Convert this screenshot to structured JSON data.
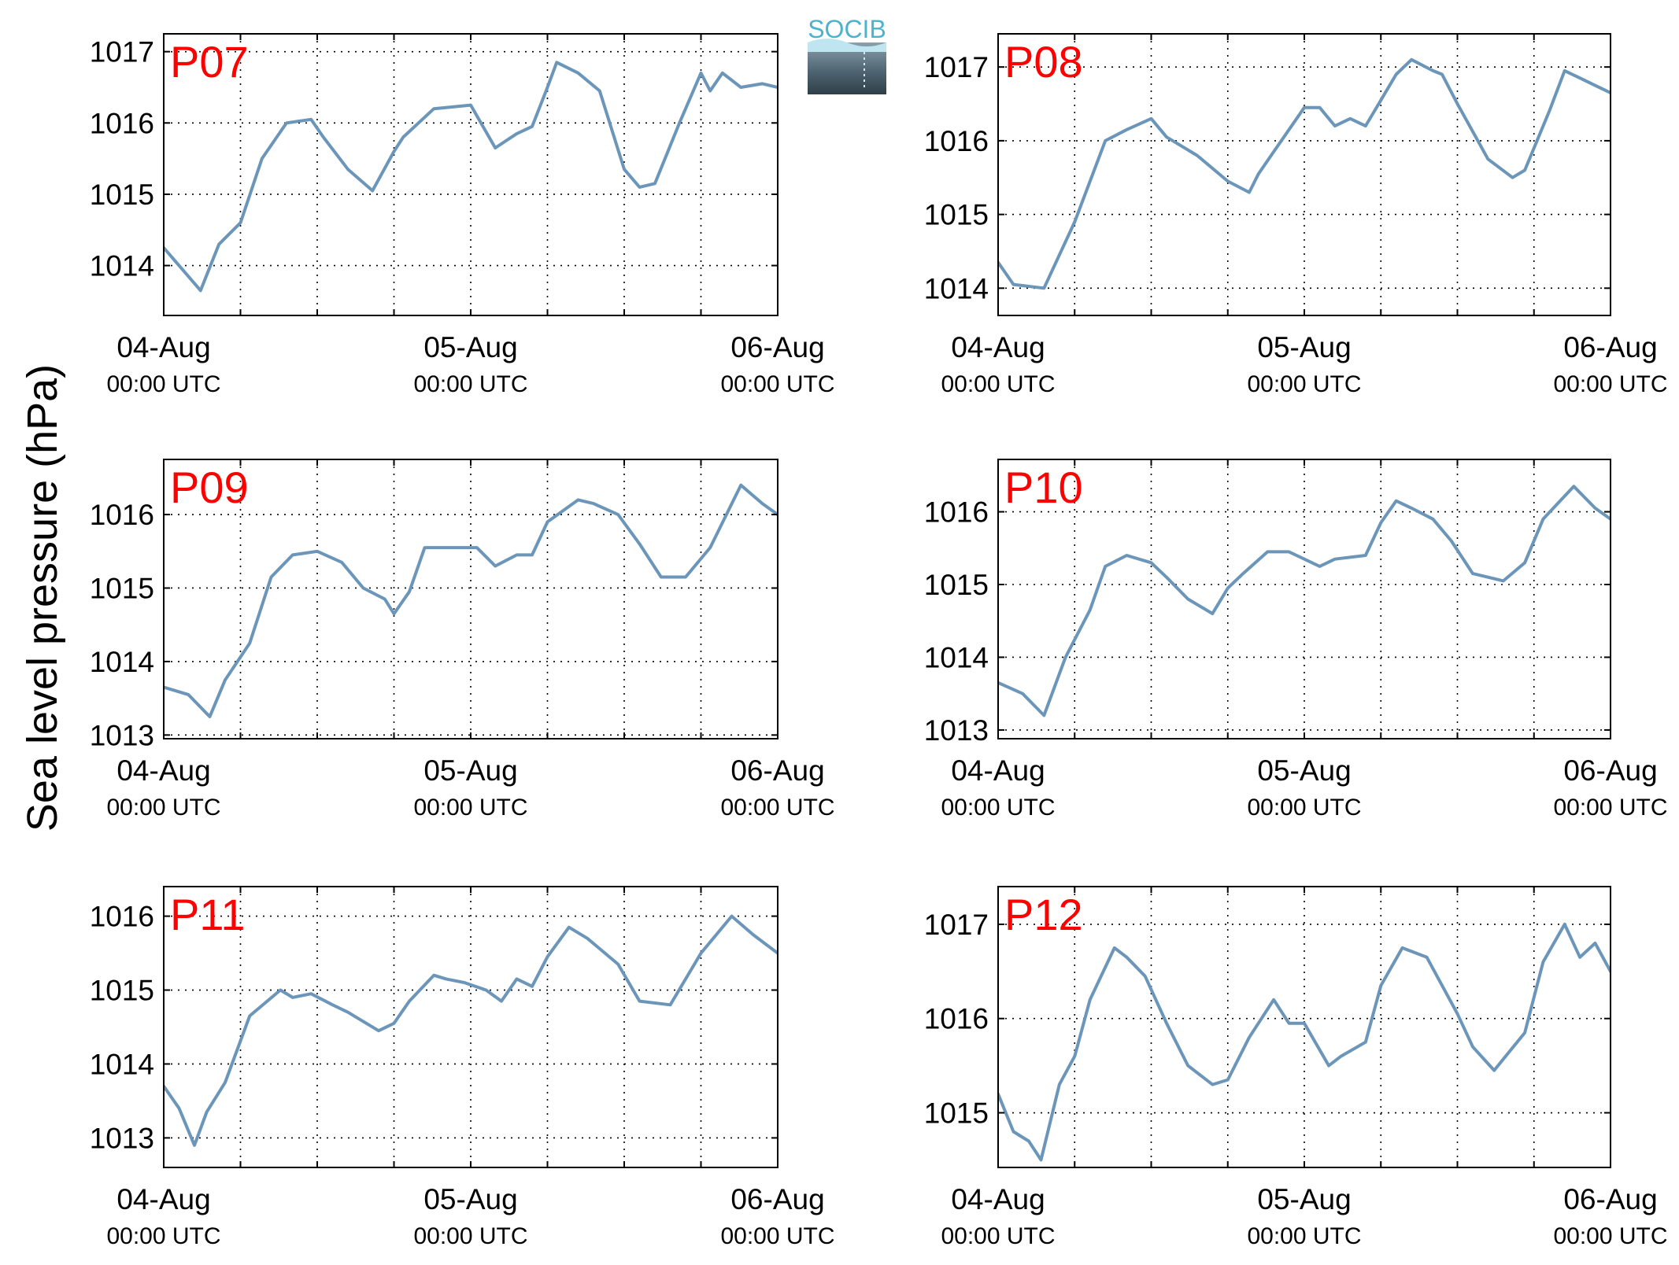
{
  "figure": {
    "ylabel": "Sea level pressure (hPa)",
    "logo_text": "SOCIB",
    "line_color": "#6b96b9",
    "panel_label_color": "#ff0000"
  },
  "chart_data": [
    {
      "type": "line",
      "panel_label": "P07",
      "x_tick_dates": [
        "04-Aug",
        "05-Aug",
        "06-Aug"
      ],
      "x_tick_times": [
        "00:00 UTC",
        "00:00 UTC",
        "00:00 UTC"
      ],
      "ylim": [
        1013.3,
        1017.25
      ],
      "yticks": [
        1014,
        1015,
        1016,
        1017
      ],
      "grid": true,
      "series": [
        {
          "x": [
            0,
            0.08,
            0.12,
            0.18,
            0.25,
            0.32,
            0.4,
            0.48,
            0.52,
            0.6,
            0.68,
            0.75,
            0.78,
            0.88,
            1.0,
            1.08,
            1.15,
            1.2,
            1.25,
            1.28,
            1.35,
            1.42,
            1.5,
            1.55,
            1.6,
            1.68,
            1.75,
            1.78,
            1.82,
            1.88,
            1.95,
            2.0
          ],
          "y": [
            1014.25,
            1013.85,
            1013.65,
            1014.3,
            1014.6,
            1015.5,
            1016.0,
            1016.05,
            1015.8,
            1015.35,
            1015.05,
            1015.6,
            1015.8,
            1016.2,
            1016.25,
            1015.65,
            1015.85,
            1015.95,
            1016.5,
            1016.85,
            1016.7,
            1016.45,
            1015.35,
            1015.1,
            1015.15,
            1016.0,
            1016.7,
            1016.45,
            1016.7,
            1016.5,
            1016.55,
            1016.5
          ]
        }
      ]
    },
    {
      "type": "line",
      "panel_label": "P08",
      "x_tick_dates": [
        "04-Aug",
        "05-Aug",
        "06-Aug"
      ],
      "x_tick_times": [
        "00:00 UTC",
        "00:00 UTC",
        "00:00 UTC"
      ],
      "ylim": [
        1013.63,
        1017.45
      ],
      "yticks": [
        1014,
        1015,
        1016,
        1017
      ],
      "grid": true,
      "series": [
        {
          "x": [
            0,
            0.05,
            0.15,
            0.25,
            0.35,
            0.42,
            0.5,
            0.55,
            0.65,
            0.75,
            0.82,
            0.85,
            0.9,
            1.0,
            1.05,
            1.1,
            1.15,
            1.2,
            1.25,
            1.3,
            1.35,
            1.42,
            1.45,
            1.5,
            1.6,
            1.68,
            1.72,
            1.8,
            1.85,
            1.9,
            2.0
          ],
          "y": [
            1014.35,
            1014.05,
            1014.0,
            1014.9,
            1016.0,
            1016.15,
            1016.3,
            1016.05,
            1015.8,
            1015.45,
            1015.3,
            1015.55,
            1015.85,
            1016.45,
            1016.45,
            1016.2,
            1016.3,
            1016.2,
            1016.55,
            1016.9,
            1017.1,
            1016.95,
            1016.9,
            1016.5,
            1015.75,
            1015.5,
            1015.6,
            1016.4,
            1016.95,
            1016.85,
            1016.65
          ]
        }
      ]
    },
    {
      "type": "line",
      "panel_label": "P09",
      "x_tick_dates": [
        "04-Aug",
        "05-Aug",
        "06-Aug"
      ],
      "x_tick_times": [
        "00:00 UTC",
        "00:00 UTC",
        "00:00 UTC"
      ],
      "ylim": [
        1012.95,
        1016.75
      ],
      "yticks": [
        1013,
        1014,
        1015,
        1016
      ],
      "grid": true,
      "series": [
        {
          "x": [
            0,
            0.08,
            0.15,
            0.2,
            0.28,
            0.35,
            0.42,
            0.5,
            0.58,
            0.65,
            0.72,
            0.75,
            0.8,
            0.85,
            0.95,
            1.02,
            1.08,
            1.15,
            1.2,
            1.25,
            1.35,
            1.4,
            1.48,
            1.55,
            1.62,
            1.7,
            1.78,
            1.88,
            1.95,
            2.0
          ],
          "y": [
            1013.65,
            1013.55,
            1013.25,
            1013.75,
            1014.25,
            1015.15,
            1015.45,
            1015.5,
            1015.35,
            1015.0,
            1014.85,
            1014.65,
            1014.95,
            1015.55,
            1015.55,
            1015.55,
            1015.3,
            1015.45,
            1015.45,
            1015.9,
            1016.2,
            1016.15,
            1016.0,
            1015.6,
            1015.15,
            1015.15,
            1015.55,
            1016.4,
            1016.15,
            1016.0
          ]
        }
      ]
    },
    {
      "type": "line",
      "panel_label": "P10",
      "x_tick_dates": [
        "04-Aug",
        "05-Aug",
        "06-Aug"
      ],
      "x_tick_times": [
        "00:00 UTC",
        "00:00 UTC",
        "00:00 UTC"
      ],
      "ylim": [
        1012.88,
        1016.72
      ],
      "yticks": [
        1013,
        1014,
        1015,
        1016
      ],
      "grid": true,
      "series": [
        {
          "x": [
            0,
            0.08,
            0.15,
            0.22,
            0.3,
            0.35,
            0.42,
            0.5,
            0.55,
            0.62,
            0.7,
            0.75,
            0.8,
            0.88,
            0.95,
            1.05,
            1.1,
            1.2,
            1.25,
            1.3,
            1.35,
            1.42,
            1.48,
            1.55,
            1.65,
            1.72,
            1.78,
            1.88,
            1.95,
            2.0
          ],
          "y": [
            1013.65,
            1013.5,
            1013.2,
            1014.0,
            1014.65,
            1015.25,
            1015.4,
            1015.3,
            1015.1,
            1014.8,
            1014.6,
            1014.95,
            1015.15,
            1015.45,
            1015.45,
            1015.25,
            1015.35,
            1015.4,
            1015.85,
            1016.15,
            1016.05,
            1015.9,
            1015.6,
            1015.15,
            1015.05,
            1015.3,
            1015.9,
            1016.35,
            1016.05,
            1015.9
          ]
        }
      ]
    },
    {
      "type": "line",
      "panel_label": "P11",
      "x_tick_dates": [
        "04-Aug",
        "05-Aug",
        "06-Aug"
      ],
      "x_tick_times": [
        "00:00 UTC",
        "00:00 UTC",
        "00:00 UTC"
      ],
      "ylim": [
        1012.6,
        1016.4
      ],
      "yticks": [
        1013,
        1014,
        1015,
        1016
      ],
      "grid": true,
      "series": [
        {
          "x": [
            0,
            0.05,
            0.1,
            0.14,
            0.2,
            0.28,
            0.38,
            0.42,
            0.48,
            0.55,
            0.6,
            0.7,
            0.75,
            0.8,
            0.88,
            0.92,
            0.98,
            1.05,
            1.1,
            1.15,
            1.2,
            1.25,
            1.32,
            1.38,
            1.48,
            1.55,
            1.65,
            1.75,
            1.85,
            1.92,
            2.0
          ],
          "y": [
            1013.7,
            1013.4,
            1012.9,
            1013.35,
            1013.75,
            1014.65,
            1015.0,
            1014.9,
            1014.95,
            1014.8,
            1014.7,
            1014.45,
            1014.55,
            1014.85,
            1015.2,
            1015.15,
            1015.1,
            1015.0,
            1014.85,
            1015.15,
            1015.05,
            1015.45,
            1015.85,
            1015.7,
            1015.35,
            1014.85,
            1014.8,
            1015.5,
            1016.0,
            1015.75,
            1015.5
          ]
        }
      ]
    },
    {
      "type": "line",
      "panel_label": "P12",
      "x_tick_dates": [
        "04-Aug",
        "05-Aug",
        "06-Aug"
      ],
      "x_tick_times": [
        "00:00 UTC",
        "00:00 UTC",
        "00:00 UTC"
      ],
      "ylim": [
        1014.42,
        1017.4
      ],
      "yticks": [
        1015,
        1016,
        1017
      ],
      "grid": true,
      "series": [
        {
          "x": [
            0,
            0.05,
            0.1,
            0.14,
            0.2,
            0.25,
            0.3,
            0.38,
            0.42,
            0.48,
            0.55,
            0.62,
            0.7,
            0.75,
            0.82,
            0.9,
            0.95,
            1.0,
            1.08,
            1.12,
            1.2,
            1.25,
            1.32,
            1.4,
            1.5,
            1.55,
            1.62,
            1.72,
            1.78,
            1.85,
            1.9,
            1.95,
            2.0
          ],
          "y": [
            1015.2,
            1014.8,
            1014.7,
            1014.5,
            1015.3,
            1015.6,
            1016.2,
            1016.75,
            1016.65,
            1016.45,
            1015.95,
            1015.5,
            1015.3,
            1015.35,
            1015.8,
            1016.2,
            1015.95,
            1015.95,
            1015.5,
            1015.6,
            1015.75,
            1016.35,
            1016.75,
            1016.65,
            1016.05,
            1015.7,
            1015.45,
            1015.85,
            1016.6,
            1017.0,
            1016.65,
            1016.8,
            1016.5
          ]
        }
      ]
    }
  ]
}
